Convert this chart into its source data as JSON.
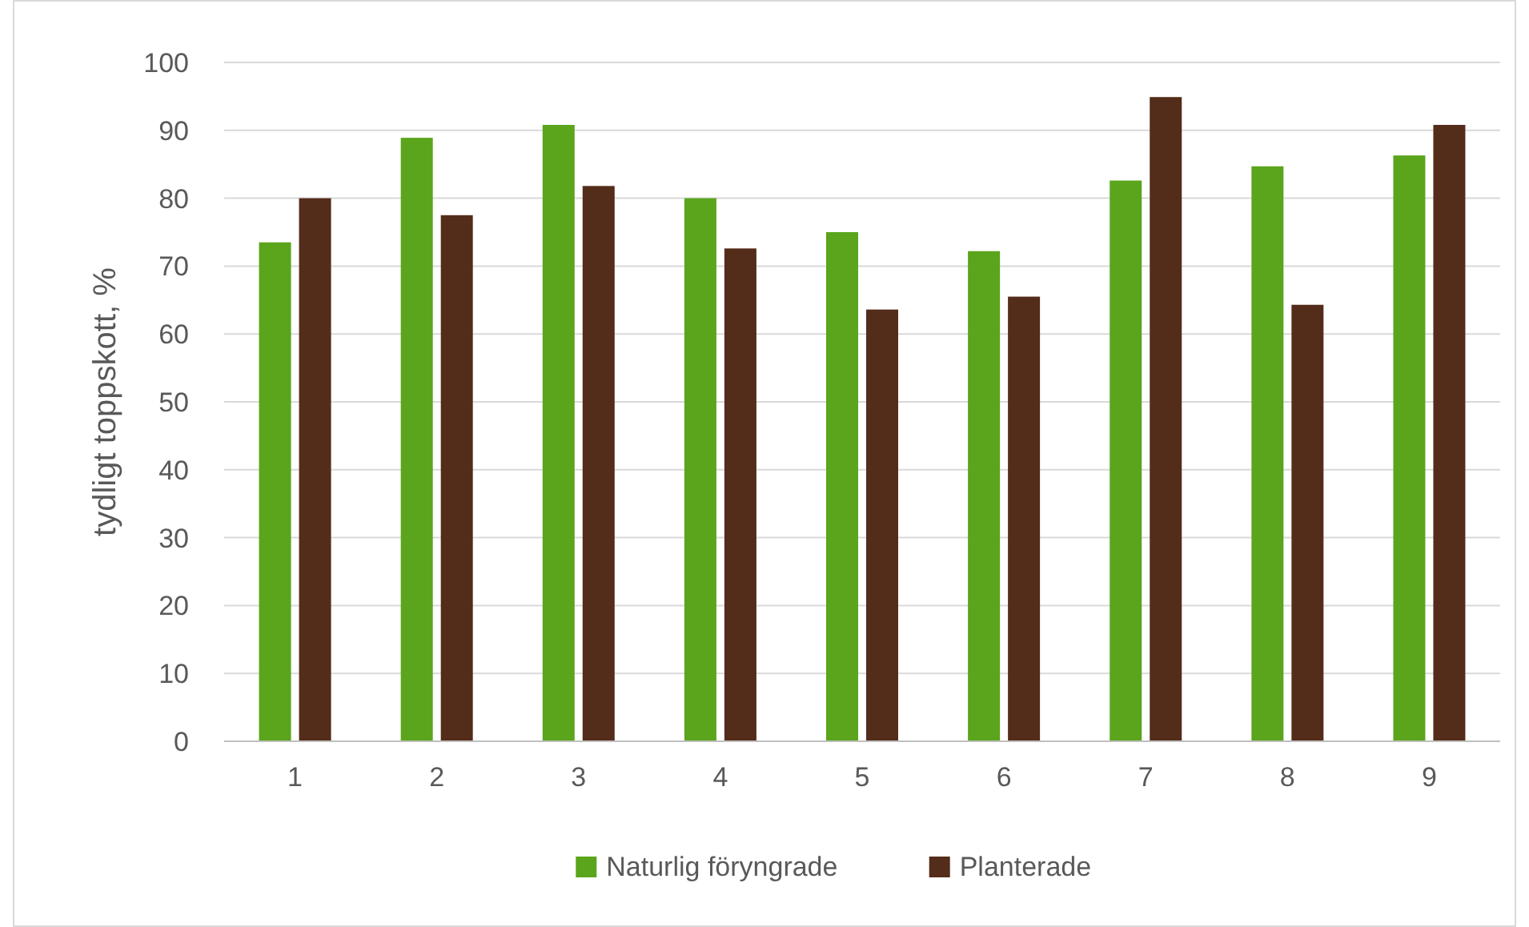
{
  "chart_data": {
    "type": "bar",
    "ylabel": "tydligt toppskott, %",
    "categories": [
      "1",
      "2",
      "3",
      "4",
      "5",
      "6",
      "7",
      "8",
      "9"
    ],
    "series": [
      {
        "name": "Naturlig föryngrade",
        "color": "#5aa51c",
        "values": [
          73.5,
          88.9,
          90.8,
          80.0,
          75.0,
          72.2,
          82.6,
          84.7,
          86.3
        ]
      },
      {
        "name": "Planterade",
        "color": "#542c1a",
        "values": [
          80.0,
          77.5,
          81.8,
          72.6,
          63.6,
          65.5,
          94.9,
          64.3,
          90.8
        ]
      }
    ],
    "ylim": [
      0,
      100
    ],
    "yticks": [
      0,
      10,
      20,
      30,
      40,
      50,
      60,
      70,
      80,
      90,
      100
    ],
    "grid": "y",
    "legend": "bottom"
  }
}
